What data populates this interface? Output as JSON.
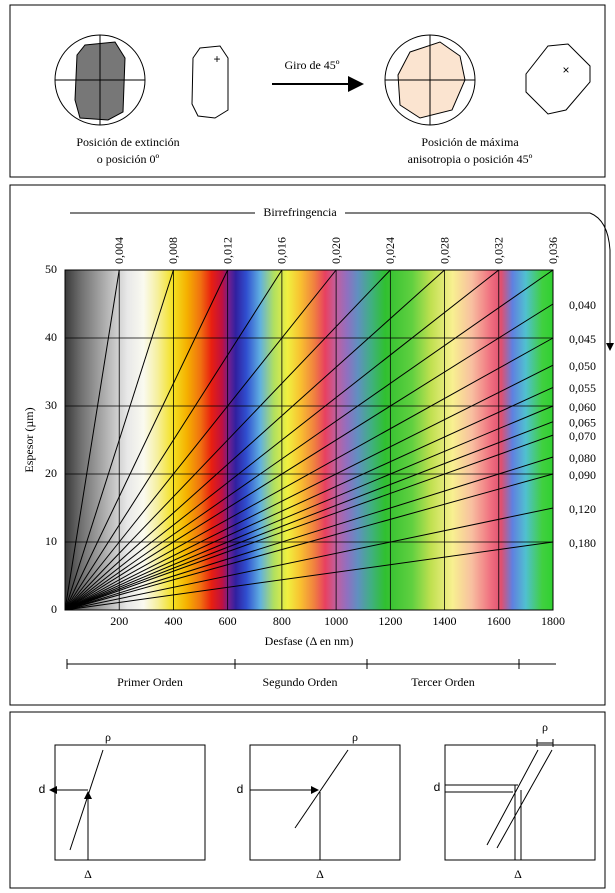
{
  "top": {
    "rotation_label": "Giro de 45º",
    "left_caption": [
      "Posición de extinción",
      "o posición 0º"
    ],
    "right_caption": [
      "Posición de máxima",
      "anisotropia o posición 45º"
    ],
    "plus": "+",
    "cross": "×"
  },
  "chart": {
    "birefringence_label": "Birrefringencia",
    "x_label": "Desfase (Δ en nm)",
    "y_label": "Espesor (µm)",
    "xlim": [
      0,
      1800
    ],
    "ylim": [
      0,
      50
    ],
    "xticks": [
      200,
      400,
      600,
      800,
      1000,
      1200,
      1400,
      1600,
      1800
    ],
    "yticks": [
      0,
      10,
      20,
      30,
      40,
      50
    ],
    "birefringence_top": [
      {
        "value": 0.004,
        "label": "0,004"
      },
      {
        "value": 0.008,
        "label": "0,008"
      },
      {
        "value": 0.012,
        "label": "0,012"
      },
      {
        "value": 0.016,
        "label": "0,016"
      },
      {
        "value": 0.02,
        "label": "0,020"
      },
      {
        "value": 0.024,
        "label": "0,024"
      },
      {
        "value": 0.028,
        "label": "0,028"
      },
      {
        "value": 0.032,
        "label": "0,032"
      },
      {
        "value": 0.036,
        "label": "0,036"
      }
    ],
    "birefringence_right": [
      {
        "value": 0.04,
        "label": "0,040"
      },
      {
        "value": 0.045,
        "label": "0,045"
      },
      {
        "value": 0.05,
        "label": "0,050"
      },
      {
        "value": 0.055,
        "label": "0,055"
      },
      {
        "value": 0.06,
        "label": "0,060"
      },
      {
        "value": 0.065,
        "label": "0,065"
      },
      {
        "value": 0.07,
        "label": "0,070"
      },
      {
        "value": 0.08,
        "label": "0,080"
      },
      {
        "value": 0.09,
        "label": "0,090"
      },
      {
        "value": 0.12,
        "label": "0,120"
      },
      {
        "value": 0.18,
        "label": "0,180"
      }
    ],
    "orders": [
      "Primer Orden",
      "Segundo Orden",
      "Tercer Orden"
    ]
  },
  "bottom": {
    "panels": [
      {
        "rho": "ρ",
        "d": "d",
        "delta": "Δ"
      },
      {
        "rho": "ρ",
        "d": "d",
        "delta": "Δ"
      },
      {
        "rho": "ρ",
        "d": "d",
        "delta": "Δ"
      }
    ]
  }
}
